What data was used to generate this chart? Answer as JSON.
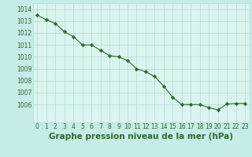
{
  "x": [
    0,
    1,
    2,
    3,
    4,
    5,
    6,
    7,
    8,
    9,
    10,
    11,
    12,
    13,
    14,
    15,
    16,
    17,
    18,
    19,
    20,
    21,
    22,
    23
  ],
  "y": [
    1013.5,
    1013.1,
    1012.8,
    1012.1,
    1011.7,
    1011.0,
    1011.0,
    1010.55,
    1010.1,
    1010.0,
    1009.7,
    1009.0,
    1008.75,
    1008.35,
    1007.55,
    1006.6,
    1006.0,
    1006.0,
    1006.0,
    1005.75,
    1005.55,
    1006.05,
    1006.1,
    1006.1
  ],
  "ylim_min": 1004.5,
  "ylim_max": 1014.5,
  "yticks": [
    1006,
    1007,
    1008,
    1009,
    1010,
    1011,
    1012,
    1013,
    1014
  ],
  "xticks": [
    0,
    1,
    2,
    3,
    4,
    5,
    6,
    7,
    8,
    9,
    10,
    11,
    12,
    13,
    14,
    15,
    16,
    17,
    18,
    19,
    20,
    21,
    22,
    23
  ],
  "xlabel": "Graphe pression niveau de la mer (hPa)",
  "line_color": "#2d6a2d",
  "marker": "D",
  "marker_size": 2.2,
  "bg_plot": "#d9f5f0",
  "bg_fig": "#c5ece6",
  "grid_color": "#b0d8cc",
  "tick_color": "#2d6a2d",
  "label_color": "#2d6a2d",
  "tick_fontsize": 5.5,
  "xlabel_fontsize": 7.5
}
